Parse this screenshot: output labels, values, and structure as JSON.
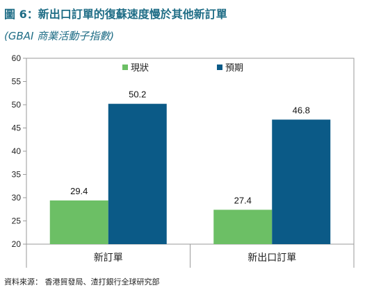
{
  "title": "圖 6：新出口訂單的復蘇速度慢於其他新訂單",
  "subtitle": "(GBAI 商業活動子指數)",
  "source": "資料來源： 香港貿發局、渣打銀行全球研究部",
  "colors": {
    "accent": "#1f6d86",
    "series_current": "#6cbf65",
    "series_expected": "#0b5a87"
  },
  "chart_data": {
    "type": "bar",
    "categories": [
      "新訂單",
      "新出口訂單"
    ],
    "series": [
      {
        "name": "現狀",
        "values": [
          29.4,
          27.4
        ],
        "color": "#6cbf65"
      },
      {
        "name": "預期",
        "values": [
          50.2,
          46.8
        ],
        "color": "#0b5a87"
      }
    ],
    "ylim": [
      20,
      60
    ],
    "yticks": [
      20,
      25,
      30,
      35,
      40,
      45,
      50,
      55,
      60
    ],
    "data_labels": [
      "29.4",
      "50.2",
      "27.4",
      "46.8"
    ],
    "legend_position": "top"
  }
}
